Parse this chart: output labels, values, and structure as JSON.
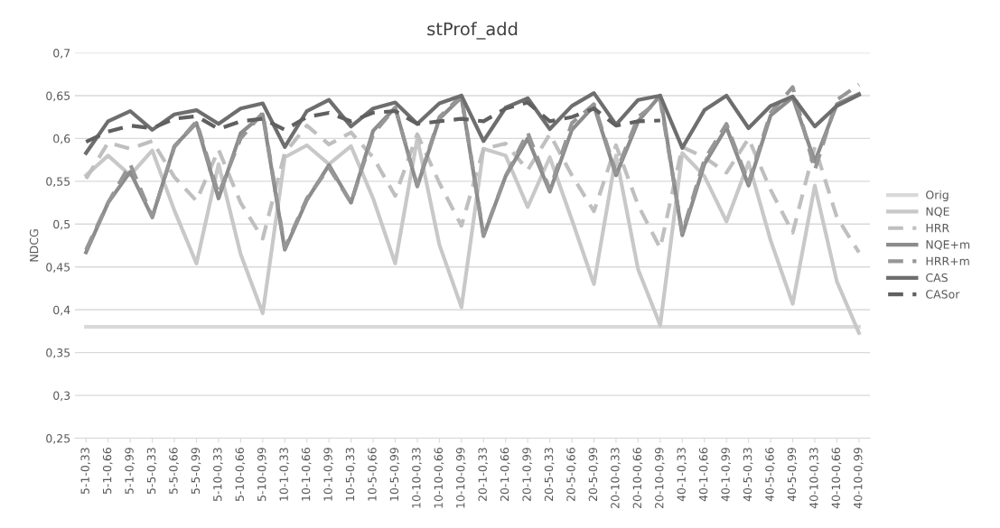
{
  "chart_data": {
    "type": "line",
    "title": "stProf_add",
    "ylabel": "NDCG",
    "categories": [
      "5-1-0,33",
      "5-1-0,66",
      "5-1-0,99",
      "5-5-0,33",
      "5-5-0,66",
      "5-5-0,99",
      "5-10-0,33",
      "5-10-0,66",
      "5-10-0,99",
      "10-1-0,33",
      "10-1-0,66",
      "10-1-0,99",
      "10-5-0,33",
      "10-5-0,66",
      "10-5-0,99",
      "10-10-0,33",
      "10-10-0,66",
      "10-10-0,99",
      "20-1-0,33",
      "20-1-0,66",
      "20-1-0,99",
      "20-5-0,33",
      "20-5-0,66",
      "20-5-0,99",
      "20-10-0,33",
      "20-10-0,66",
      "20-10-0,99",
      "40-1-0,33",
      "40-1-0,66",
      "40-1-0,99",
      "40-5-0,33",
      "40-5-0,66",
      "40-5-0,99",
      "40-10-0,33",
      "40-10-0,66",
      "40-10-0,99"
    ],
    "series": [
      {
        "name": "Orig",
        "color": "#d9d9d9",
        "line_style": "solid",
        "values": [
          0.38,
          0.38,
          0.38,
          0.38,
          0.38,
          0.38,
          0.38,
          0.38,
          0.38,
          0.38,
          0.38,
          0.38,
          0.38,
          0.38,
          0.38,
          0.38,
          0.38,
          0.38,
          0.38,
          0.38,
          0.38,
          0.38,
          0.38,
          0.38,
          0.38,
          0.38,
          0.38,
          0.38,
          0.38,
          0.38,
          0.38,
          0.38,
          0.38,
          0.38,
          0.38,
          0.38
        ]
      },
      {
        "name": "NQE",
        "color": "#c8c8c8",
        "line_style": "solid",
        "values": [
          0.557,
          0.58,
          0.557,
          0.586,
          0.516,
          0.454,
          0.57,
          0.465,
          0.396,
          0.578,
          0.592,
          0.57,
          0.591,
          0.53,
          0.454,
          0.6,
          0.476,
          0.403,
          0.588,
          0.58,
          0.52,
          0.578,
          0.505,
          0.43,
          0.58,
          0.447,
          0.382,
          0.583,
          0.556,
          0.503,
          0.572,
          0.481,
          0.407,
          0.545,
          0.433,
          0.373
        ]
      },
      {
        "name": "HRR",
        "color": "#bfbfbf",
        "line_style": "dashed",
        "values": [
          0.553,
          0.595,
          0.588,
          0.597,
          0.555,
          0.527,
          0.587,
          0.525,
          0.483,
          0.583,
          0.615,
          0.593,
          0.607,
          0.578,
          0.533,
          0.605,
          0.548,
          0.498,
          0.588,
          0.594,
          0.563,
          0.605,
          0.557,
          0.515,
          0.592,
          0.522,
          0.472,
          0.59,
          0.578,
          0.56,
          0.6,
          0.54,
          0.49,
          0.59,
          0.508,
          0.467
        ]
      },
      {
        "name": "NQE+m",
        "color": "#8c8c8c",
        "line_style": "solid",
        "values": [
          0.467,
          0.525,
          0.561,
          0.508,
          0.591,
          0.618,
          0.53,
          0.606,
          0.628,
          0.47,
          0.528,
          0.569,
          0.525,
          0.609,
          0.636,
          0.544,
          0.623,
          0.648,
          0.486,
          0.556,
          0.6,
          0.538,
          0.61,
          0.638,
          0.557,
          0.62,
          0.65,
          0.487,
          0.57,
          0.613,
          0.545,
          0.627,
          0.648,
          0.573,
          0.64,
          0.652
        ]
      },
      {
        "name": "HRR+m",
        "color": "#969696",
        "line_style": "dashed",
        "values": [
          0.47,
          0.525,
          0.57,
          0.508,
          0.59,
          0.62,
          0.535,
          0.6,
          0.63,
          0.472,
          0.53,
          0.566,
          0.525,
          0.605,
          0.636,
          0.545,
          0.625,
          0.65,
          0.487,
          0.556,
          0.607,
          0.54,
          0.618,
          0.64,
          0.56,
          0.625,
          0.645,
          0.49,
          0.575,
          0.617,
          0.548,
          0.63,
          0.66,
          0.563,
          0.645,
          0.663
        ]
      },
      {
        "name": "CAS",
        "color": "#6e6e6e",
        "line_style": "solid",
        "values": [
          0.583,
          0.62,
          0.632,
          0.61,
          0.628,
          0.633,
          0.617,
          0.635,
          0.641,
          0.59,
          0.632,
          0.645,
          0.614,
          0.635,
          0.642,
          0.617,
          0.641,
          0.65,
          0.597,
          0.636,
          0.647,
          0.611,
          0.638,
          0.653,
          0.616,
          0.645,
          0.65,
          0.589,
          0.633,
          0.65,
          0.612,
          0.638,
          0.649,
          0.614,
          0.638,
          0.651
        ]
      },
      {
        "name": "CASor",
        "color": "#606060",
        "line_style": "dashed",
        "values": [
          0.596,
          0.608,
          0.615,
          0.612,
          0.623,
          0.626,
          0.611,
          0.62,
          0.623,
          0.61,
          0.625,
          0.63,
          0.62,
          0.63,
          0.632,
          0.617,
          0.62,
          0.623,
          0.62,
          0.635,
          0.642,
          0.62,
          0.625,
          0.635,
          0.615,
          0.62,
          0.621,
          null,
          null,
          null,
          null,
          null,
          null,
          null,
          null,
          null
        ]
      }
    ],
    "ylim": [
      0.25,
      0.7
    ],
    "yticks": [
      {
        "value": 0.25,
        "label": "0,25"
      },
      {
        "value": 0.3,
        "label": "0,3"
      },
      {
        "value": 0.35,
        "label": "0,35"
      },
      {
        "value": 0.4,
        "label": "0,4"
      },
      {
        "value": 0.45,
        "label": "0,45"
      },
      {
        "value": 0.5,
        "label": "0,5"
      },
      {
        "value": 0.55,
        "label": "0,55"
      },
      {
        "value": 0.6,
        "label": "0,6"
      },
      {
        "value": 0.65,
        "label": "0,65"
      },
      {
        "value": 0.7,
        "label": "0,7"
      }
    ],
    "grid": "y",
    "legend": "right"
  }
}
